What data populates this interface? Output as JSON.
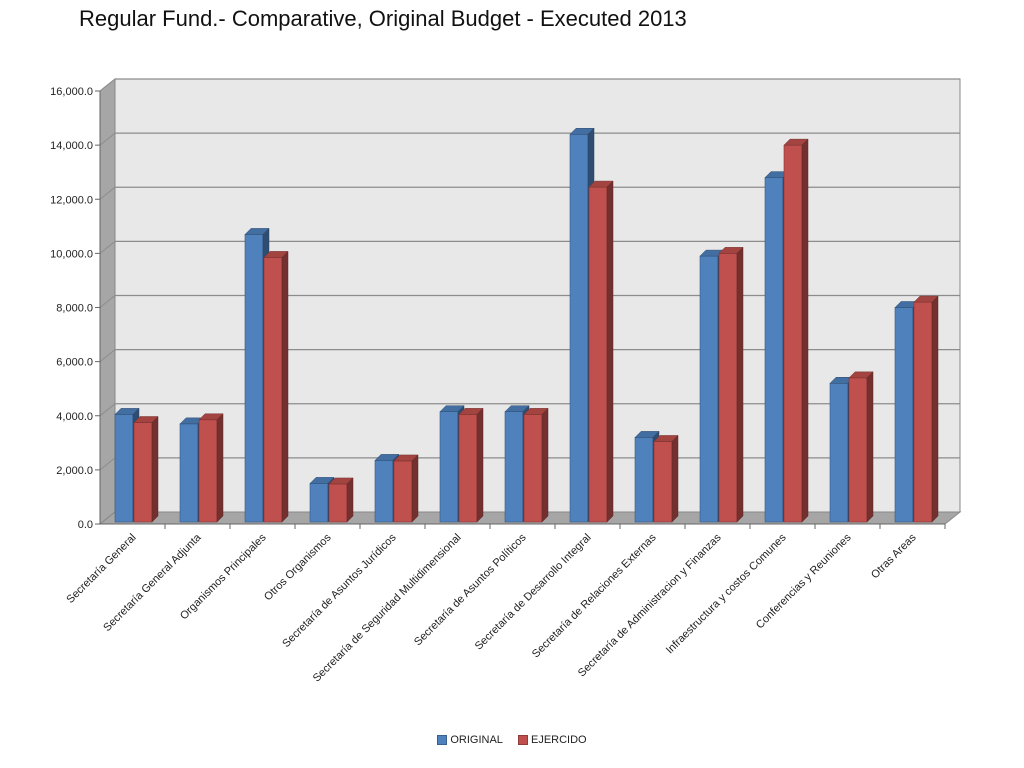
{
  "chart_data": {
    "type": "bar",
    "title": "Regular Fund.- Comparative, Original Budget - Executed 2013",
    "xlabel": "",
    "ylabel": "",
    "ylim": [
      0,
      16000
    ],
    "yticks": [
      "0.0",
      "2,000.0",
      "4,000.0",
      "6,000.0",
      "8,000.0",
      "10,000.0",
      "12,000.0",
      "14,000.0",
      "16,000.0"
    ],
    "categories": [
      "Secretaría General",
      "Secretaría General Adjunta",
      "Organismos Principales",
      "Otros Organismos",
      "Secretaría de Asuntos Jurídicos",
      "Secretaría de Seguridad Multidimensional",
      "Secretaría de Asuntos Políticos",
      "Secretaría de Desarrollo Integral",
      "Secretaría de Relaciones Externas",
      "Secretaría de Administracion y Finanzas",
      "Infraestructura y costos Comunes",
      "Conferencias y Reuniones",
      "Otras Areas"
    ],
    "series": [
      {
        "name": "ORIGINAL",
        "color": "#4F81BD",
        "values": [
          4050,
          3700,
          10700,
          1500,
          2350,
          4150,
          4150,
          14400,
          3200,
          9900,
          12800,
          5200,
          8000
        ]
      },
      {
        "name": "EJERCIDO",
        "color": "#C0504D",
        "values": [
          3750,
          3850,
          9850,
          1480,
          2330,
          4050,
          4050,
          12450,
          3050,
          10000,
          14000,
          5400,
          8200
        ]
      }
    ],
    "grid": true,
    "legend_position": "bottom",
    "style": "3d-clustered-column"
  }
}
